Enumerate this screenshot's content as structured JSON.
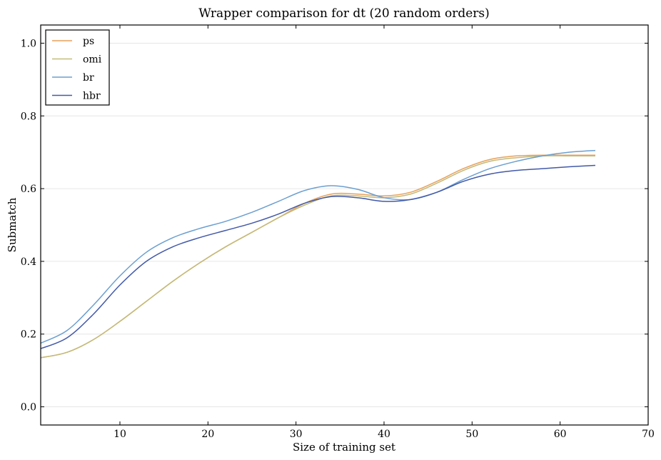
{
  "chart_data": {
    "type": "line",
    "title": "Wrapper comparison for dt (20 random orders)",
    "xlabel": "Size of training set",
    "ylabel": "Submatch",
    "xlim": [
      1,
      70
    ],
    "ylim": [
      -0.05,
      1.05
    ],
    "xticks": [
      10,
      20,
      30,
      40,
      50,
      60,
      70
    ],
    "yticks": [
      0.0,
      0.2,
      0.4,
      0.6,
      0.8,
      1.0
    ],
    "xtick_labels": [
      "10",
      "20",
      "30",
      "40",
      "50",
      "60",
      "70"
    ],
    "ytick_labels": [
      "0.0",
      "0.2",
      "0.4",
      "0.6",
      "0.8",
      "1.0"
    ],
    "grid": "horizontal",
    "legend_position": "top-left",
    "series": [
      {
        "name": "ps",
        "color": "#e6a15c",
        "x": [
          1,
          4,
          7,
          10,
          13,
          16,
          19,
          22,
          25,
          28,
          31,
          34,
          37,
          40,
          43,
          46,
          49,
          52,
          55,
          58,
          61,
          64
        ],
        "y": [
          0.135,
          0.15,
          0.185,
          0.235,
          0.29,
          0.345,
          0.395,
          0.44,
          0.48,
          0.52,
          0.56,
          0.585,
          0.585,
          0.58,
          0.59,
          0.62,
          0.655,
          0.68,
          0.69,
          0.692,
          0.692,
          0.692
        ]
      },
      {
        "name": "omi",
        "color": "#c2bb7a",
        "x": [
          1,
          4,
          7,
          10,
          13,
          16,
          19,
          22,
          25,
          28,
          31,
          34,
          37,
          40,
          43,
          46,
          49,
          52,
          55,
          58,
          61,
          64
        ],
        "y": [
          0.135,
          0.15,
          0.185,
          0.235,
          0.29,
          0.345,
          0.395,
          0.44,
          0.48,
          0.52,
          0.555,
          0.58,
          0.58,
          0.575,
          0.585,
          0.615,
          0.65,
          0.675,
          0.685,
          0.69,
          0.69,
          0.69
        ]
      },
      {
        "name": "br",
        "color": "#6b9fd0",
        "x": [
          1,
          4,
          7,
          10,
          13,
          16,
          19,
          22,
          25,
          28,
          31,
          34,
          37,
          40,
          43,
          46,
          49,
          52,
          55,
          58,
          61,
          64
        ],
        "y": [
          0.175,
          0.21,
          0.28,
          0.36,
          0.425,
          0.465,
          0.49,
          0.51,
          0.535,
          0.565,
          0.595,
          0.608,
          0.598,
          0.575,
          0.57,
          0.59,
          0.625,
          0.655,
          0.675,
          0.69,
          0.7,
          0.705
        ]
      },
      {
        "name": "hbr",
        "color": "#4259a8",
        "x": [
          1,
          4,
          7,
          10,
          13,
          16,
          19,
          22,
          25,
          28,
          31,
          34,
          37,
          40,
          43,
          46,
          49,
          52,
          55,
          58,
          61,
          64
        ],
        "y": [
          0.16,
          0.19,
          0.255,
          0.335,
          0.4,
          0.44,
          0.465,
          0.485,
          0.505,
          0.53,
          0.56,
          0.578,
          0.575,
          0.565,
          0.57,
          0.59,
          0.62,
          0.64,
          0.65,
          0.655,
          0.66,
          0.664
        ]
      }
    ]
  }
}
